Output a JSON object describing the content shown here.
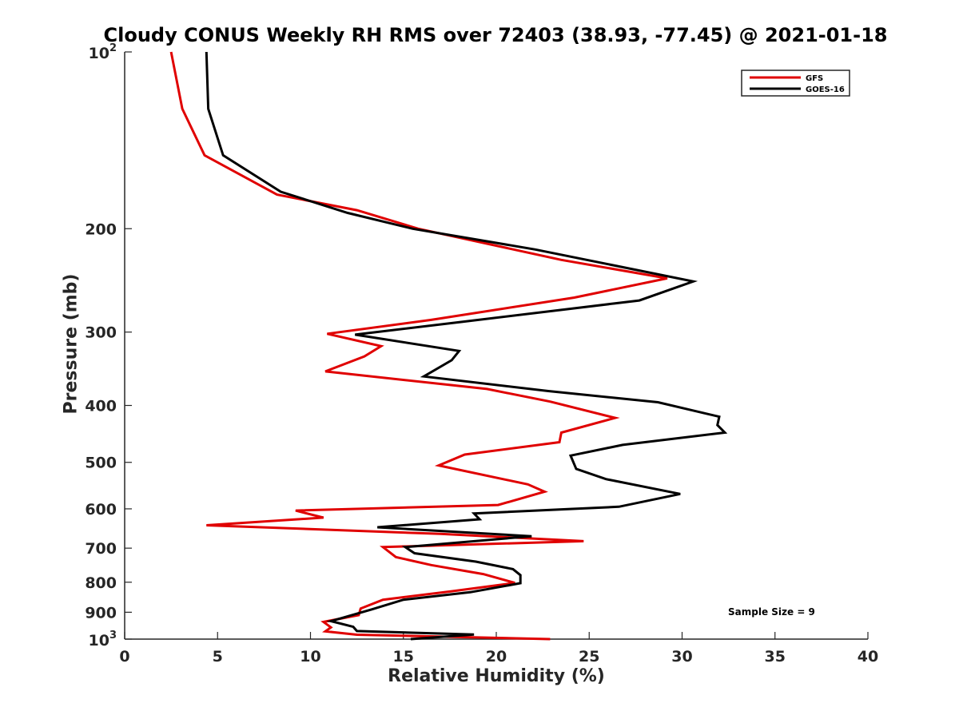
{
  "chart_data": {
    "type": "line",
    "title": "Cloudy CONUS Weekly RH RMS over 72403 (38.93, -77.45) @ 2021-01-18",
    "xlabel": "Relative Humidity (%)",
    "ylabel": "Pressure (mb)",
    "xlim": [
      0,
      40
    ],
    "ylim": [
      100,
      1000
    ],
    "y_scale": "log",
    "y_reversed": true,
    "grid": false,
    "legend_position": "top-right",
    "x_ticks": [
      "0",
      "5",
      "10",
      "15",
      "20",
      "25",
      "30",
      "35",
      "40"
    ],
    "y_ticks": [
      {
        "value": 100,
        "base": "10",
        "exp": "2"
      },
      {
        "value": 200,
        "label": "200"
      },
      {
        "value": 300,
        "label": "300"
      },
      {
        "value": 400,
        "label": "400"
      },
      {
        "value": 500,
        "label": "500"
      },
      {
        "value": 600,
        "label": "600"
      },
      {
        "value": 700,
        "label": "700"
      },
      {
        "value": 800,
        "label": "800"
      },
      {
        "value": 900,
        "label": "900"
      },
      {
        "value": 1000,
        "base": "10",
        "exp": "3"
      }
    ],
    "annotation": "Sample Size = 9",
    "series": [
      {
        "name": "GFS",
        "color": "#e00000",
        "points": [
          [
            2.5,
            100
          ],
          [
            3.1,
            125
          ],
          [
            4.3,
            150
          ],
          [
            8.2,
            175
          ],
          [
            12.5,
            186
          ],
          [
            15.8,
            200
          ],
          [
            23.5,
            226
          ],
          [
            29.2,
            243
          ],
          [
            24.2,
            262
          ],
          [
            16.5,
            286
          ],
          [
            10.9,
            302
          ],
          [
            13.8,
            317
          ],
          [
            12.9,
            330
          ],
          [
            10.8,
            350
          ],
          [
            19.5,
            375
          ],
          [
            22.9,
            394
          ],
          [
            26.4,
            420
          ],
          [
            23.5,
            445
          ],
          [
            23.4,
            462
          ],
          [
            18.3,
            485
          ],
          [
            16.9,
            506
          ],
          [
            21.7,
            545
          ],
          [
            22.6,
            561
          ],
          [
            20.1,
            591
          ],
          [
            9.2,
            604
          ],
          [
            10.7,
            621
          ],
          [
            4.4,
            640
          ],
          [
            17.0,
            662
          ],
          [
            24.7,
            681
          ],
          [
            13.9,
            697
          ],
          [
            14.6,
            725
          ],
          [
            16.5,
            748
          ],
          [
            19.3,
            775
          ],
          [
            21.0,
            802
          ],
          [
            17.6,
            829
          ],
          [
            13.9,
            857
          ],
          [
            12.7,
            887
          ],
          [
            12.6,
            910
          ],
          [
            10.7,
            935
          ],
          [
            11.1,
            955
          ],
          [
            10.8,
            970
          ],
          [
            12.5,
            983
          ],
          [
            22.9,
            1000
          ]
        ]
      },
      {
        "name": "GOES-16",
        "color": "#000000",
        "points": [
          [
            4.4,
            100
          ],
          [
            4.5,
            125
          ],
          [
            5.3,
            150
          ],
          [
            8.4,
            173
          ],
          [
            12.0,
            188
          ],
          [
            15.5,
            200
          ],
          [
            22.1,
            217
          ],
          [
            30.6,
            246
          ],
          [
            27.7,
            265
          ],
          [
            18.2,
            288
          ],
          [
            12.4,
            303
          ],
          [
            18.0,
            323
          ],
          [
            17.6,
            335
          ],
          [
            16.1,
            357
          ],
          [
            22.8,
            378
          ],
          [
            28.7,
            395
          ],
          [
            32.0,
            418
          ],
          [
            31.9,
            432
          ],
          [
            32.3,
            445
          ],
          [
            26.8,
            467
          ],
          [
            24.0,
            487
          ],
          [
            24.3,
            513
          ],
          [
            25.9,
            534
          ],
          [
            29.9,
            566
          ],
          [
            26.6,
            595
          ],
          [
            18.8,
            611
          ],
          [
            19.1,
            625
          ],
          [
            13.6,
            645
          ],
          [
            21.9,
            668
          ],
          [
            15.1,
            697
          ],
          [
            15.6,
            714
          ],
          [
            18.9,
            738
          ],
          [
            20.9,
            760
          ],
          [
            21.3,
            778
          ],
          [
            21.3,
            803
          ],
          [
            18.6,
            832
          ],
          [
            15.0,
            857
          ],
          [
            13.3,
            890
          ],
          [
            11.1,
            932
          ],
          [
            12.3,
            953
          ],
          [
            12.5,
            969
          ],
          [
            18.8,
            982
          ],
          [
            15.4,
            1000
          ]
        ]
      }
    ]
  }
}
